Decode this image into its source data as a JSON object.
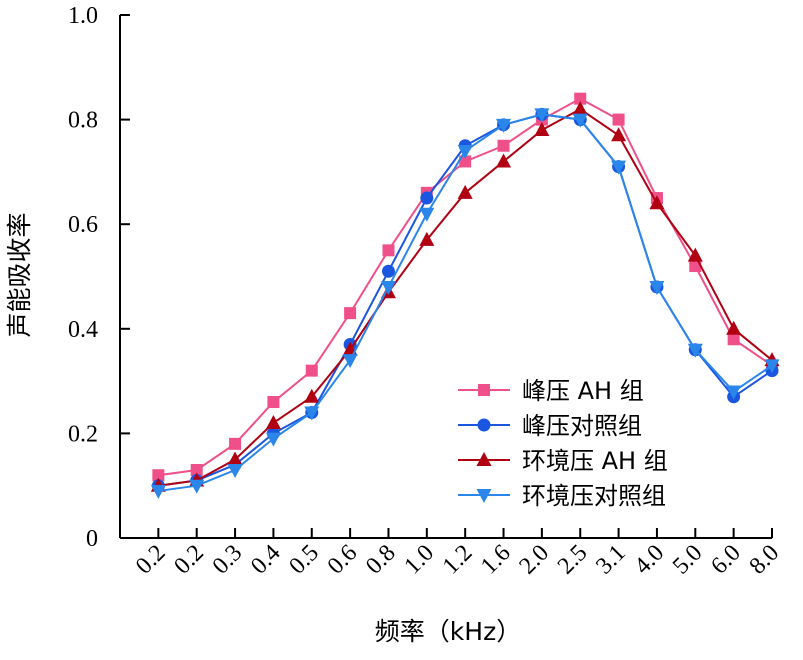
{
  "chart_data": {
    "type": "line",
    "xlabel": "频率（kHz）",
    "ylabel": "声能吸收率",
    "ylim": [
      0,
      1.0
    ],
    "y_ticks": [
      "0",
      "0.2",
      "0.4",
      "0.6",
      "0.8",
      "1.0"
    ],
    "y_tick_values": [
      0,
      0.2,
      0.4,
      0.6,
      0.8,
      1.0
    ],
    "categories": [
      "0.2",
      "0.2",
      "0.3",
      "0.4",
      "0.5",
      "0.6",
      "0.8",
      "1.0",
      "1.2",
      "1.6",
      "2.0",
      "2.5",
      "3.1",
      "4.0",
      "5.0",
      "6.0",
      "8.0"
    ],
    "legend_position": "bottom-right",
    "grid": false,
    "series": [
      {
        "name": "峰压 AH 组",
        "color": "#f0508a",
        "marker": "square",
        "values": [
          0.12,
          0.13,
          0.18,
          0.26,
          0.32,
          0.43,
          0.55,
          0.66,
          0.72,
          0.75,
          0.8,
          0.84,
          0.8,
          0.65,
          0.52,
          0.38,
          0.33
        ]
      },
      {
        "name": "峰压对照组",
        "color": "#1a56e0",
        "marker": "circle",
        "values": [
          0.1,
          0.11,
          0.14,
          0.2,
          0.24,
          0.37,
          0.51,
          0.65,
          0.75,
          0.79,
          0.81,
          0.8,
          0.71,
          0.48,
          0.36,
          0.27,
          0.32
        ]
      },
      {
        "name": "环境压 AH 组",
        "color": "#b00012",
        "marker": "triangle-up",
        "values": [
          0.1,
          0.11,
          0.15,
          0.22,
          0.27,
          0.36,
          0.47,
          0.57,
          0.66,
          0.72,
          0.78,
          0.82,
          0.77,
          0.64,
          0.54,
          0.4,
          0.34
        ]
      },
      {
        "name": "环境压对照组",
        "color": "#2a86e8",
        "marker": "triangle-down",
        "values": [
          0.09,
          0.1,
          0.13,
          0.19,
          0.24,
          0.34,
          0.48,
          0.62,
          0.74,
          0.79,
          0.81,
          0.8,
          0.71,
          0.48,
          0.36,
          0.28,
          0.33
        ]
      }
    ]
  }
}
